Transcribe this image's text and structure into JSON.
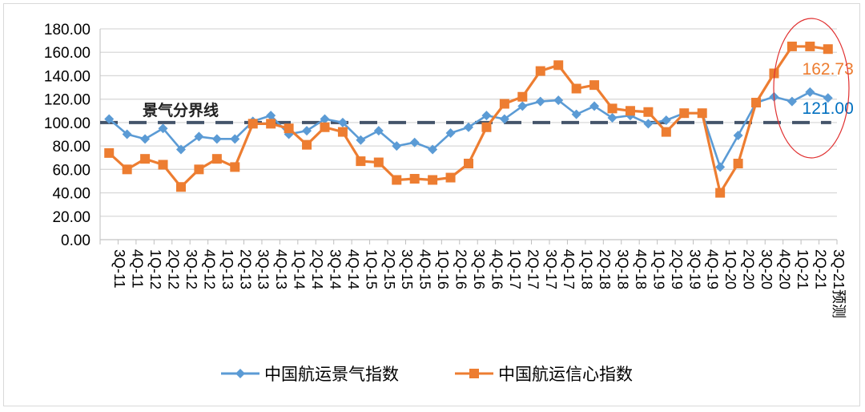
{
  "chart_data": {
    "type": "line",
    "title": "",
    "xlabel": "",
    "ylabel": "",
    "ylim": [
      0,
      180
    ],
    "yticks": [
      "0.00",
      "20.00",
      "40.00",
      "60.00",
      "80.00",
      "100.00",
      "120.00",
      "140.00",
      "160.00",
      "180.00"
    ],
    "grid": true,
    "legend_position": "bottom",
    "categories": [
      "3Q-11",
      "4Q-11",
      "1Q-12",
      "2Q-12",
      "3Q-12",
      "4Q-12",
      "1Q-13",
      "2Q-13",
      "3Q-13",
      "4Q-13",
      "1Q-14",
      "2Q-14",
      "3Q-14",
      "4Q-14",
      "1Q-15",
      "2Q-15",
      "3Q-15",
      "4Q-15",
      "1Q-16",
      "2Q-16",
      "3Q-16",
      "4Q-16",
      "1Q-17",
      "2Q-17",
      "3Q-17",
      "4Q-17",
      "1Q-18",
      "2Q-18",
      "3Q-18",
      "4Q-18",
      "1Q-19",
      "2Q-19",
      "3Q-19",
      "4Q-19",
      "1Q-20",
      "2Q-20",
      "3Q-20",
      "4Q-20",
      "1Q-21",
      "2Q-21",
      "3Q-21预测"
    ],
    "series": [
      {
        "name": "中国航运景气指数",
        "color": "#5b9bd5",
        "marker": "diamond",
        "values": [
          103,
          90,
          86,
          95,
          77,
          88,
          86,
          86,
          101,
          106,
          90,
          93,
          103,
          100,
          85,
          93,
          80,
          83,
          77,
          91,
          96,
          106,
          103,
          114,
          118,
          119,
          107,
          114,
          104,
          106,
          99,
          102,
          108,
          108,
          62,
          89,
          117,
          122,
          118,
          126,
          121.0
        ]
      },
      {
        "name": "中国航运信心指数",
        "color": "#ed7d31",
        "marker": "square",
        "values": [
          74,
          60,
          69,
          64,
          45,
          60,
          69,
          62,
          99,
          99,
          95,
          81,
          96,
          92,
          67,
          66,
          51,
          52,
          51,
          53,
          65,
          96,
          116,
          122,
          144,
          149,
          129,
          132,
          112,
          110,
          109,
          92,
          108,
          108,
          40,
          65,
          117,
          142,
          165,
          165,
          162.73
        ]
      }
    ],
    "reference_line": {
      "value": 100,
      "label": "景气分界线",
      "color": "#44546a"
    },
    "annotations": [
      {
        "series": 0,
        "index": 40,
        "text": "121.00",
        "color": "#0070c0"
      },
      {
        "series": 1,
        "index": 40,
        "text": "162.73",
        "color": "#ed7d31"
      }
    ],
    "highlight_ellipse_color": "#e03030"
  }
}
